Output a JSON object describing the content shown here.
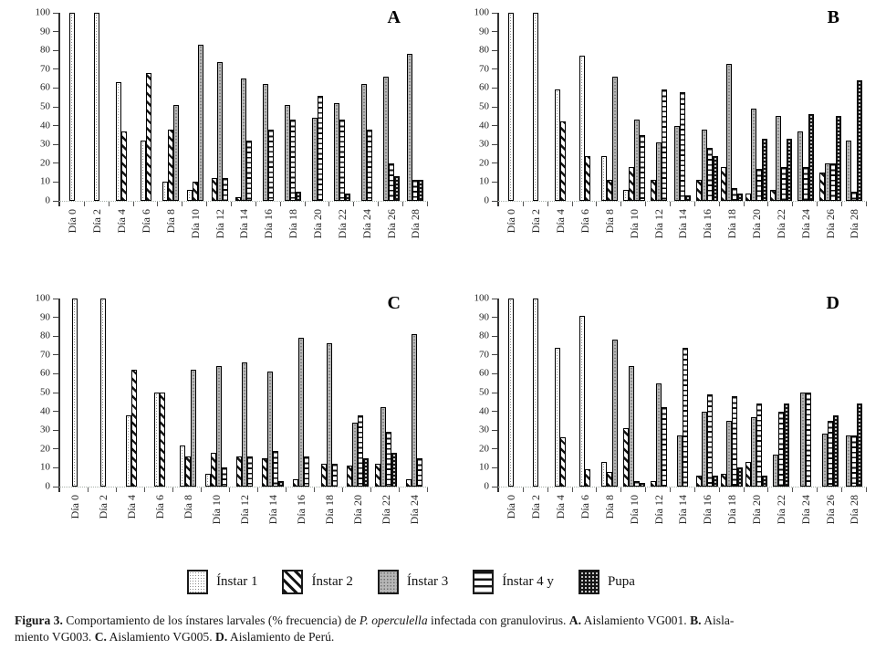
{
  "axes": {
    "y_ticks": [
      0,
      10,
      20,
      30,
      40,
      50,
      60,
      70,
      80,
      90,
      100
    ],
    "ylim": [
      0,
      100
    ],
    "grid": false,
    "x_label_rotation": 90
  },
  "chart_data": [
    {
      "type": "bar",
      "panel_label": "A",
      "categories": [
        "Día 0",
        "Día 2",
        "Día 4",
        "Día 6",
        "Día 8",
        "Día 10",
        "Día 12",
        "Día 14",
        "Día 16",
        "Día 18",
        "Día 20",
        "Día 22",
        "Día 24",
        "Día 26",
        "Día 28"
      ],
      "ylim": [
        0,
        100
      ],
      "series": [
        {
          "name": "Ínstar 1",
          "pattern": "p-i1",
          "values": [
            100,
            100,
            63,
            32,
            10,
            6,
            0,
            0,
            0,
            0,
            0,
            0,
            0,
            0,
            0
          ]
        },
        {
          "name": "Ínstar 2",
          "pattern": "p-i2",
          "values": [
            0,
            0,
            37,
            68,
            38,
            10,
            12,
            2,
            0,
            0,
            0,
            0,
            0,
            0,
            0
          ]
        },
        {
          "name": "Ínstar 3",
          "pattern": "p-i3",
          "values": [
            0,
            0,
            0,
            0,
            51,
            83,
            74,
            65,
            62,
            51,
            44,
            52,
            62,
            66,
            78
          ]
        },
        {
          "name": "Ínstar 4 y",
          "pattern": "p-i4",
          "values": [
            0,
            0,
            0,
            0,
            0,
            0,
            12,
            32,
            38,
            43,
            56,
            43,
            38,
            20,
            11
          ]
        },
        {
          "name": "Pupa",
          "pattern": "p-pupa",
          "values": [
            0,
            0,
            0,
            0,
            0,
            0,
            0,
            0,
            0,
            5,
            0,
            4,
            0,
            13,
            11
          ]
        }
      ]
    },
    {
      "type": "bar",
      "panel_label": "B",
      "categories": [
        "Día 0",
        "Día 2",
        "Día 4",
        "Día 6",
        "Día 8",
        "Día 10",
        "Día 12",
        "Día 14",
        "Día 16",
        "Día 18",
        "Día 20",
        "Día 22",
        "Día 24",
        "Día 26",
        "Día 28"
      ],
      "ylim": [
        0,
        100
      ],
      "series": [
        {
          "name": "Ínstar 1",
          "pattern": "p-i1",
          "values": [
            100,
            100,
            59,
            77,
            24,
            6,
            0,
            0,
            0,
            0,
            0,
            0,
            0,
            0,
            0
          ]
        },
        {
          "name": "Ínstar 2",
          "pattern": "p-i2",
          "values": [
            0,
            0,
            42,
            24,
            11,
            18,
            11,
            0,
            11,
            18,
            4,
            6,
            0,
            15,
            0
          ]
        },
        {
          "name": "Ínstar 3",
          "pattern": "p-i3",
          "values": [
            0,
            0,
            0,
            0,
            66,
            43,
            31,
            40,
            38,
            73,
            49,
            45,
            37,
            20,
            32
          ]
        },
        {
          "name": "Ínstar 4 y",
          "pattern": "p-i4",
          "values": [
            0,
            0,
            0,
            0,
            0,
            35,
            59,
            58,
            28,
            7,
            17,
            18,
            18,
            20,
            5
          ]
        },
        {
          "name": "Pupa",
          "pattern": "p-pupa",
          "values": [
            0,
            0,
            0,
            0,
            0,
            0,
            0,
            3,
            24,
            4,
            33,
            33,
            46,
            45,
            64
          ]
        }
      ]
    },
    {
      "type": "bar",
      "panel_label": "C",
      "categories": [
        "Día 0",
        "Día 2",
        "Día 4",
        "Día 6",
        "Día 8",
        "Día 10",
        "Día 12",
        "Día 14",
        "Día 16",
        "Día 18",
        "Día 20",
        "Día 22",
        "Día 24"
      ],
      "ylim": [
        0,
        100
      ],
      "series": [
        {
          "name": "Ínstar 1",
          "pattern": "p-i1",
          "values": [
            100,
            100,
            38,
            50,
            22,
            7,
            0,
            0,
            0,
            0,
            0,
            0,
            0
          ]
        },
        {
          "name": "Ínstar 2",
          "pattern": "p-i2",
          "values": [
            0,
            0,
            62,
            50,
            16,
            18,
            16,
            15,
            4,
            12,
            11,
            12,
            4
          ]
        },
        {
          "name": "Ínstar 3",
          "pattern": "p-i3",
          "values": [
            0,
            0,
            0,
            0,
            62,
            64,
            66,
            61,
            79,
            76,
            34,
            42,
            81
          ]
        },
        {
          "name": "Ínstar 4 y",
          "pattern": "p-i4",
          "values": [
            0,
            0,
            0,
            0,
            0,
            10,
            16,
            19,
            16,
            12,
            38,
            29,
            15
          ]
        },
        {
          "name": "Pupa",
          "pattern": "p-pupa",
          "values": [
            0,
            0,
            0,
            0,
            0,
            0,
            0,
            3,
            0,
            0,
            15,
            18,
            0
          ]
        }
      ]
    },
    {
      "type": "bar",
      "panel_label": "D",
      "categories": [
        "Día 0",
        "Día 2",
        "Día 4",
        "Día 6",
        "Día 8",
        "Día 10",
        "Día 12",
        "Día 14",
        "Día 16",
        "Día 18",
        "Día 20",
        "Día 22",
        "Día 24",
        "Día 26",
        "Día 28"
      ],
      "ylim": [
        0,
        100
      ],
      "series": [
        {
          "name": "Ínstar 1",
          "pattern": "p-i1",
          "values": [
            100,
            100,
            74,
            91,
            13,
            0,
            0,
            0,
            0,
            0,
            0,
            0,
            0,
            0,
            0
          ]
        },
        {
          "name": "Ínstar 2",
          "pattern": "p-i2",
          "values": [
            0,
            0,
            26,
            9,
            8,
            31,
            3,
            0,
            6,
            7,
            13,
            0,
            0,
            0,
            0
          ]
        },
        {
          "name": "Ínstar 3",
          "pattern": "p-i3",
          "values": [
            0,
            0,
            0,
            0,
            78,
            64,
            55,
            27,
            40,
            35,
            37,
            17,
            50,
            28,
            27
          ]
        },
        {
          "name": "Ínstar 4 y",
          "pattern": "p-i4",
          "values": [
            0,
            0,
            0,
            0,
            0,
            3,
            42,
            74,
            49,
            48,
            44,
            40,
            50,
            35,
            27
          ]
        },
        {
          "name": "Pupa",
          "pattern": "p-pupa",
          "values": [
            0,
            0,
            0,
            0,
            0,
            2,
            0,
            0,
            6,
            10,
            6,
            44,
            0,
            38,
            44
          ]
        }
      ]
    }
  ],
  "legend": {
    "items": [
      {
        "label": "Ínstar 1",
        "pattern": "p-i1"
      },
      {
        "label": "Ínstar 2",
        "pattern": "p-i2"
      },
      {
        "label": "Ínstar 3",
        "pattern": "p-i3"
      },
      {
        "label": "Ínstar 4 y",
        "pattern": "p-i4"
      },
      {
        "label": "Pupa",
        "pattern": "p-pupa"
      }
    ]
  },
  "caption": {
    "segments": [
      {
        "text": "Figura 3.",
        "bold": true
      },
      {
        "text": " Comportamiento de los ínstares larvales (% frecuencia) de "
      },
      {
        "text": "P. operculella",
        "italic": true
      },
      {
        "text": " infectada con granulovirus. "
      },
      {
        "text": "A.",
        "bold": true
      },
      {
        "text": " Aislamiento VG001. "
      },
      {
        "text": "B.",
        "bold": true
      },
      {
        "text": " Aisla-"
      },
      {
        "br": true
      },
      {
        "text": "miento VG003. "
      },
      {
        "text": "C.",
        "bold": true
      },
      {
        "text": " Aislamiento VG005. "
      },
      {
        "text": "D.",
        "bold": true
      },
      {
        "text": " Aislamiento de Perú."
      }
    ]
  },
  "colors": {
    "axis": "#333333",
    "baseline": "#a9b2ab",
    "bar_border": "#000000",
    "instar3_gray": "#b7b7b7",
    "pupa_dark": "#161616",
    "text": "#111111"
  }
}
